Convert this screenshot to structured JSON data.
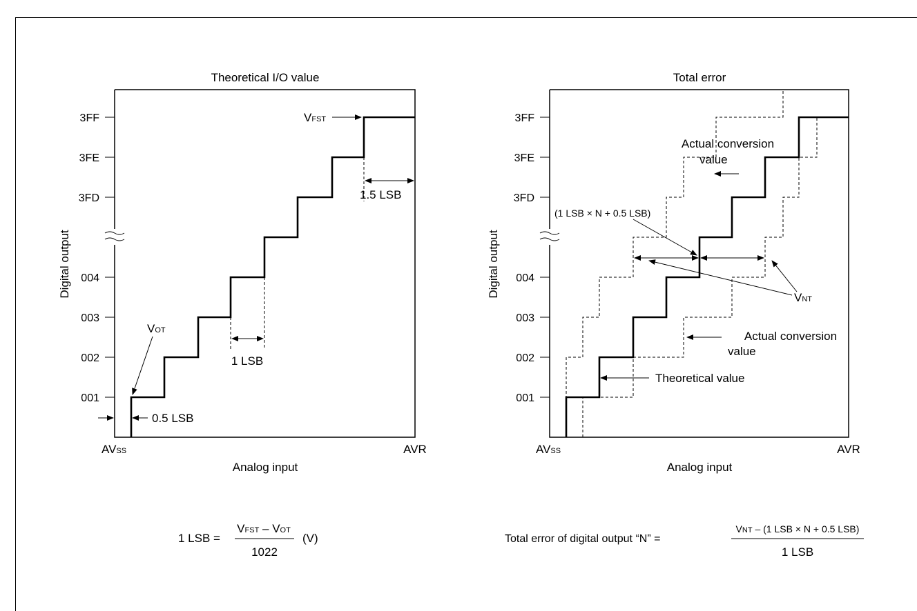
{
  "left_chart": {
    "title": "Theoretical I/O value",
    "y_label": "Digital output",
    "x_label": "Analog input",
    "y_ticks": [
      "3FF",
      "3FE",
      "3FD",
      "004",
      "003",
      "002",
      "001"
    ],
    "x_start": "AV",
    "x_start_sub": "SS",
    "x_end": "AVR",
    "vot_main": "V",
    "vot_sub": "OT",
    "vfst_main": "V",
    "vfst_sub": "FST",
    "lsb_1": "1 LSB",
    "lsb_05": "0.5 LSB",
    "lsb_15": "1.5 LSB",
    "formula": {
      "lhs": "1 LSB =",
      "num_a": "V",
      "num_a_sub": "FST",
      "num_mid": " – V",
      "num_b_sub": "OT",
      "den": "1022",
      "unit": "(V)"
    }
  },
  "right_chart": {
    "title": "Total error",
    "y_label": "Digital output",
    "x_label": "Analog input",
    "y_ticks": [
      "3FF",
      "3FE",
      "3FD",
      "004",
      "003",
      "002",
      "001"
    ],
    "x_start": "AV",
    "x_start_sub": "SS",
    "x_end": "AVR",
    "actual_top_1": "Actual conversion",
    "actual_top_2": "value",
    "bracket_label": "(1 LSB × N + 0.5 LSB)",
    "vnt_main": "V",
    "vnt_sub": "NT",
    "actual_bottom_1": "Actual conversion",
    "actual_bottom_2": "value",
    "theoretical": "Theoretical value",
    "formula": {
      "lhs": "Total error of digital output “N” =",
      "num_a": "V",
      "num_a_sub": "NT",
      "num_rest": " – (1 LSB × N + 0.5 LSB)",
      "den": "1 LSB"
    }
  }
}
